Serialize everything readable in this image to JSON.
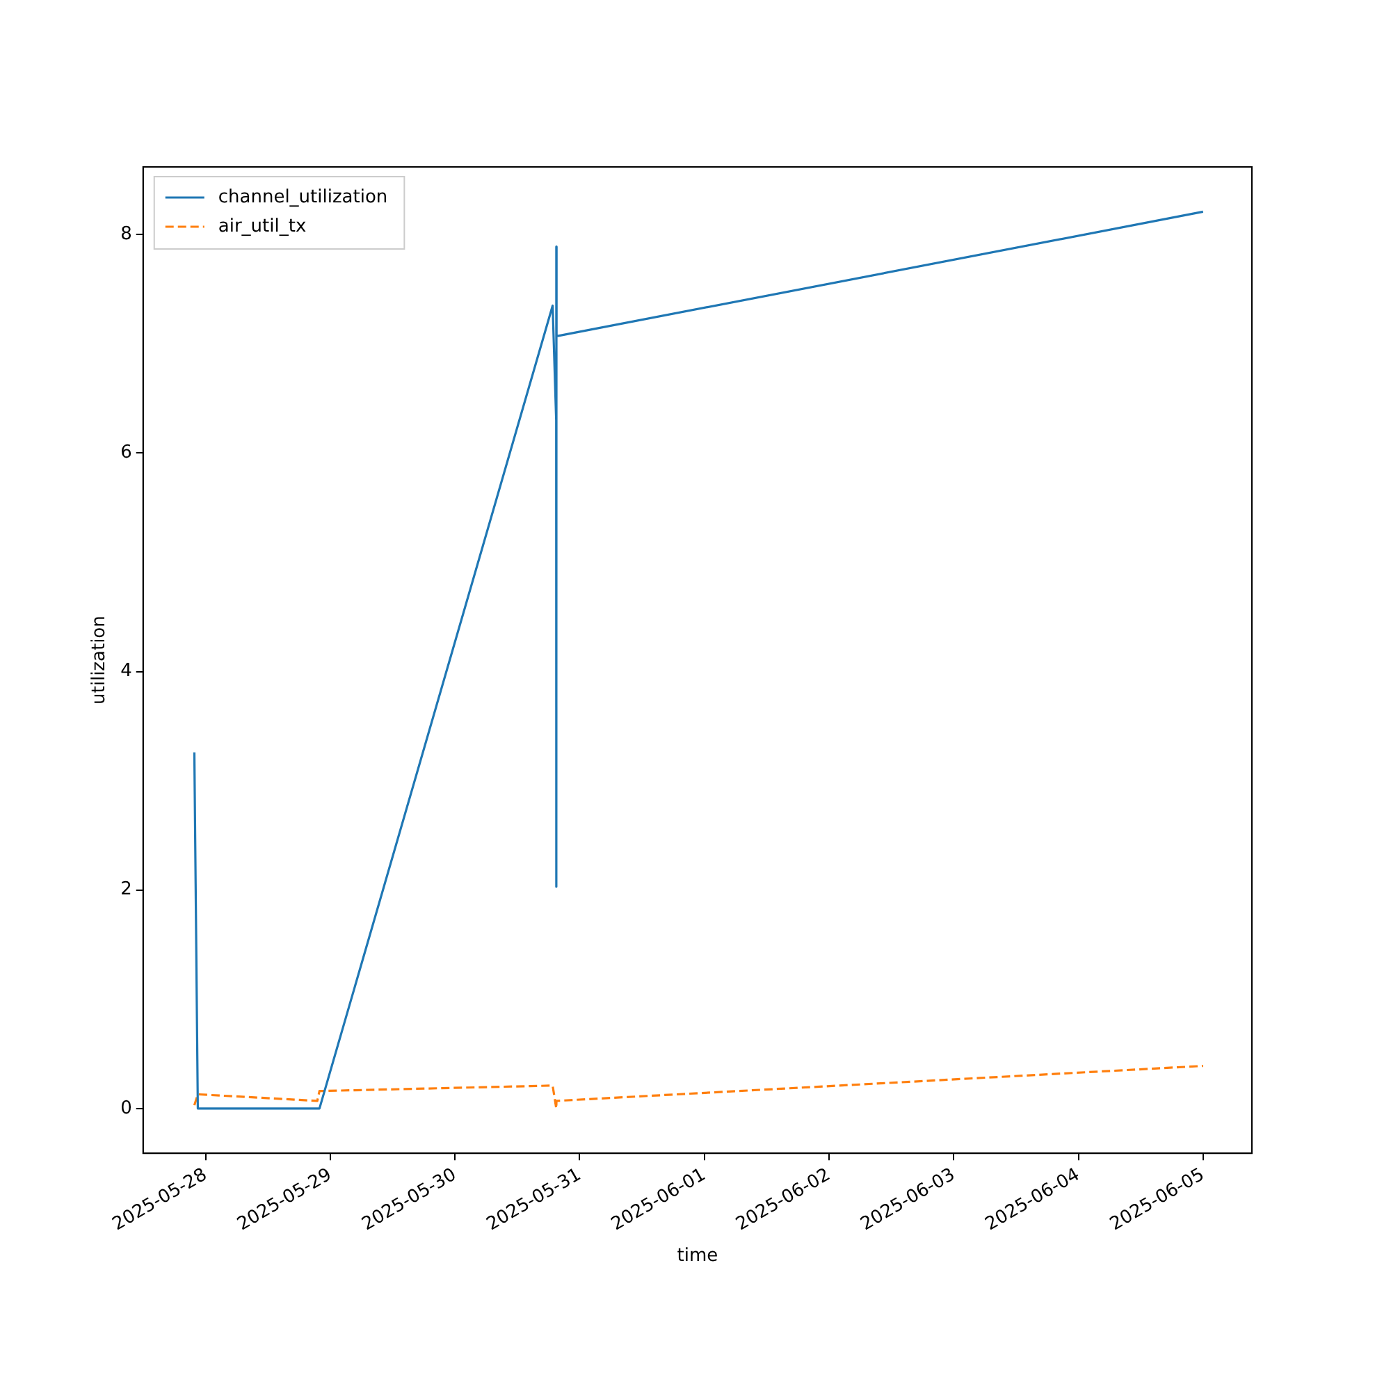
{
  "chart_data": {
    "type": "line",
    "xlabel": "time",
    "ylabel": "utilization",
    "legend": "top left",
    "grid": false,
    "marker": "none",
    "xlim": [
      "2025-05-27T11:58",
      "2025-06-05T09:24"
    ],
    "xticks": [
      "2025-05-28",
      "2025-05-29",
      "2025-05-30",
      "2025-05-31",
      "2025-06-01",
      "2025-06-02",
      "2025-06-03",
      "2025-06-04",
      "2025-06-05"
    ],
    "ylim": [
      -0.41,
      8.62
    ],
    "yticks": [
      0,
      2,
      4,
      6,
      8
    ],
    "series": [
      {
        "name": "channel_utilization",
        "color": "#1f77b4",
        "line_style": "solid",
        "x": [
          "2025-05-27T21:50",
          "2025-05-27T22:30",
          "2025-05-28T21:55",
          "2025-05-30T18:48",
          "2025-05-30T19:29",
          "2025-05-30T19:30",
          "2025-05-30T19:31",
          "2025-05-30T19:32",
          "2025-05-30T19:33",
          "2025-06-05T00:00"
        ],
        "values": [
          3.26,
          0,
          0,
          7.35,
          6.3,
          7.89,
          2.03,
          7.89,
          7.07,
          8.21
        ]
      },
      {
        "name": "air_util_tx",
        "color": "#ff7f0e",
        "line_style": "dashed",
        "x": [
          "2025-05-27T21:50",
          "2025-05-27T22:30",
          "2025-05-28T21:30",
          "2025-05-28T21:55",
          "2025-05-30T18:48",
          "2025-05-30T19:30",
          "2025-05-30T19:32",
          "2025-06-05T00:00"
        ],
        "values": [
          0.03,
          0.13,
          0.07,
          0.16,
          0.21,
          0,
          0.07,
          0.39
        ]
      }
    ]
  }
}
